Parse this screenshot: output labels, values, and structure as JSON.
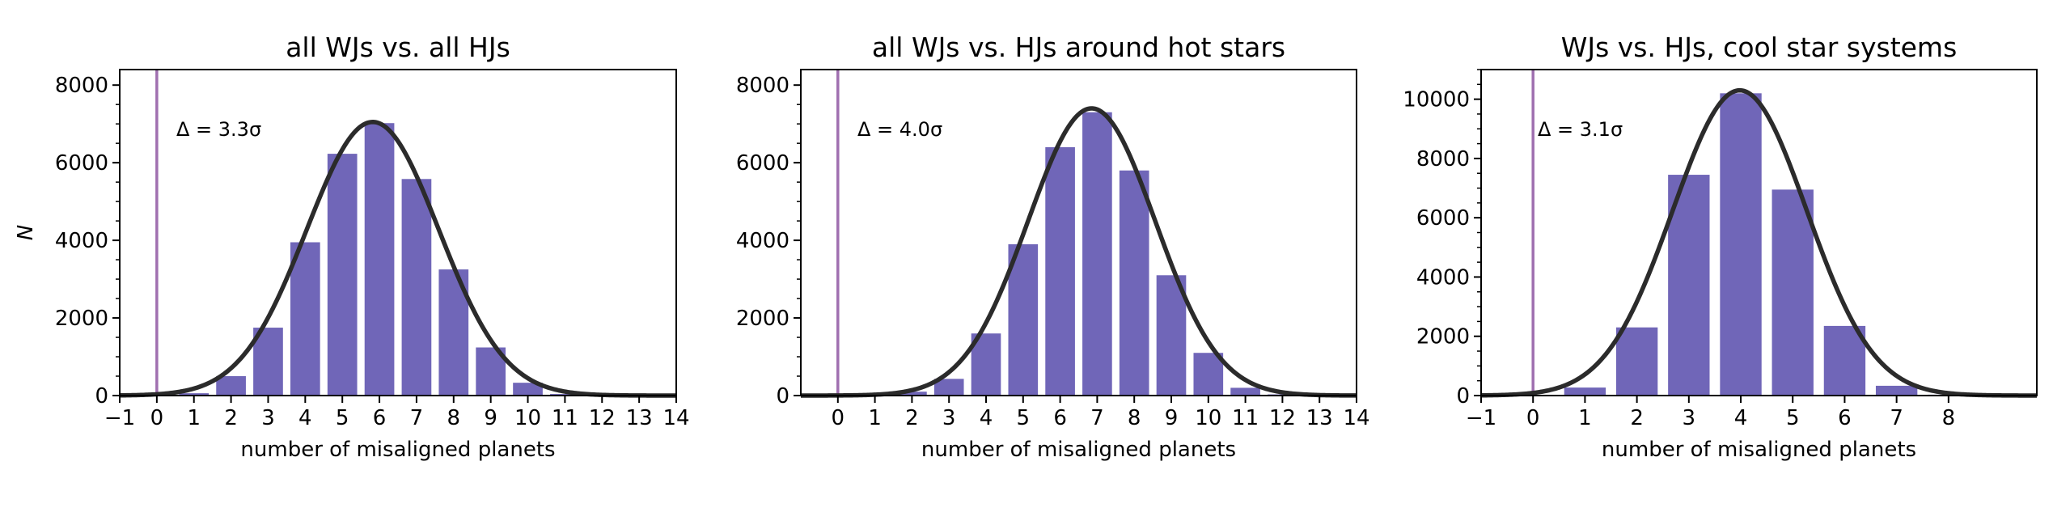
{
  "colors": {
    "bar": "#7066b8",
    "curve": "#2b2b2b",
    "zero_line": "#a070b0",
    "axis": "#000000"
  },
  "chart_data": [
    {
      "type": "bar",
      "title": "all WJs vs. all HJs",
      "xlabel": "number of misaligned planets",
      "ylabel": "N",
      "annotation": "Δ = 3.3σ",
      "xlim": [
        -1,
        14
      ],
      "ylim": [
        0,
        8400
      ],
      "xticks": [
        "−1",
        "0",
        "1",
        "2",
        "3",
        "4",
        "5",
        "6",
        "7",
        "8",
        "9",
        "10",
        "11",
        "12",
        "13",
        "14"
      ],
      "yticks": [
        "0",
        "2000",
        "4000",
        "6000",
        "8000"
      ],
      "categories": [
        0,
        1,
        2,
        3,
        4,
        5,
        6,
        7,
        8,
        9,
        10,
        11
      ],
      "values": [
        0,
        60,
        500,
        1750,
        3950,
        6230,
        7020,
        5580,
        3250,
        1240,
        330,
        40
      ],
      "fit": {
        "type": "gaussian",
        "mean": 5.82,
        "sigma": 1.78,
        "amplitude": 7050
      },
      "vline": 0
    },
    {
      "type": "bar",
      "title": "all WJs vs. HJs around hot stars",
      "xlabel": "number of misaligned planets",
      "ylabel": "",
      "annotation": "Δ = 4.0σ",
      "xlim": [
        -1,
        14
      ],
      "ylim": [
        0,
        8400
      ],
      "xticks": [
        "0",
        "1",
        "2",
        "3",
        "4",
        "5",
        "6",
        "7",
        "8",
        "9",
        "10",
        "11",
        "12",
        "13",
        "14"
      ],
      "yticks": [
        "0",
        "2000",
        "4000",
        "6000",
        "8000"
      ],
      "categories": [
        0,
        1,
        2,
        3,
        4,
        5,
        6,
        7,
        8,
        9,
        10,
        11,
        12
      ],
      "values": [
        0,
        20,
        100,
        430,
        1600,
        3900,
        6400,
        7300,
        5800,
        3100,
        1100,
        200,
        30
      ],
      "fit": {
        "type": "gaussian",
        "mean": 6.85,
        "sigma": 1.72,
        "amplitude": 7400
      },
      "vline": 0
    },
    {
      "type": "bar",
      "title": "WJs vs. HJs, cool star systems",
      "xlabel": "number of misaligned planets",
      "ylabel": "",
      "annotation": "Δ = 3.1σ",
      "xlim": [
        -1,
        9.7
      ],
      "ylim": [
        0,
        11000
      ],
      "xticks": [
        "−1",
        "0",
        "1",
        "2",
        "3",
        "4",
        "5",
        "6",
        "7",
        "8"
      ],
      "yticks": [
        "0",
        "2000",
        "4000",
        "6000",
        "8000",
        "10000"
      ],
      "categories": [
        0,
        1,
        2,
        3,
        4,
        5,
        6,
        7,
        8
      ],
      "values": [
        0,
        270,
        2300,
        7450,
        10200,
        6950,
        2350,
        330,
        30
      ],
      "fit": {
        "type": "gaussian",
        "mean": 3.98,
        "sigma": 1.29,
        "amplitude": 10300
      },
      "vline": 0
    }
  ]
}
